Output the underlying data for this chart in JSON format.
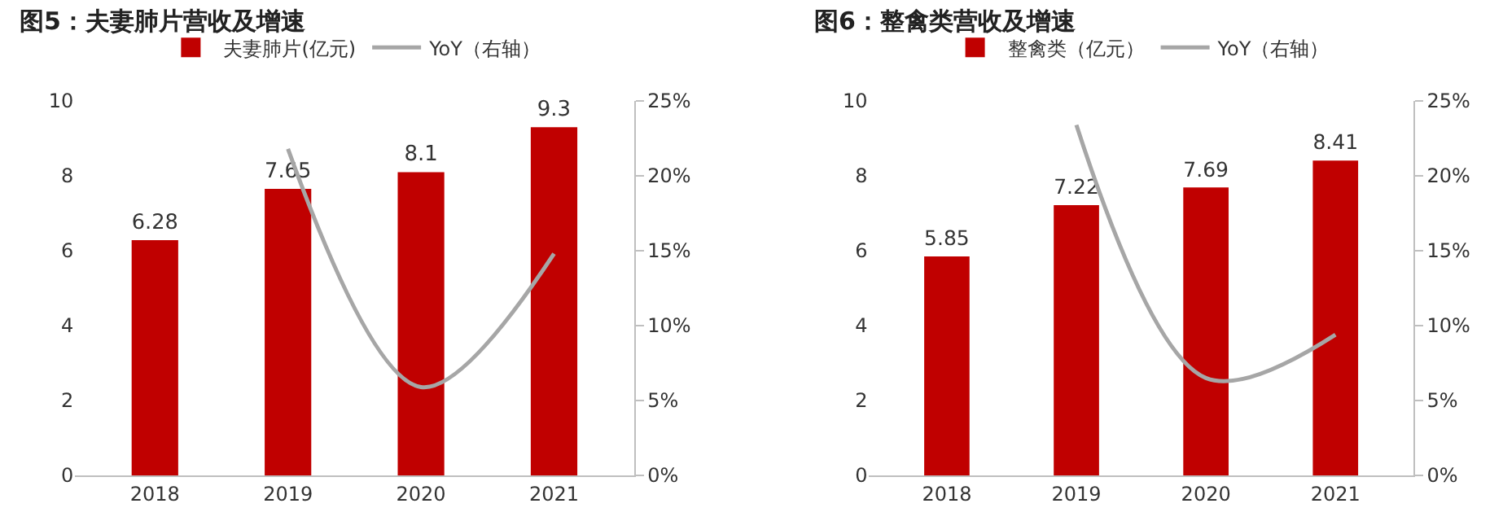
{
  "chart_data": [
    {
      "type": "bar",
      "title": "图5：夫妻肺片营收及增速",
      "categories": [
        "2018",
        "2019",
        "2020",
        "2021"
      ],
      "series": [
        {
          "name": "夫妻肺片(亿元)",
          "color": "#c00000",
          "values": [
            6.28,
            7.65,
            8.1,
            9.3
          ],
          "value_labels": [
            "6.28",
            "7.65",
            "8.1",
            "9.3"
          ]
        },
        {
          "name": "YoY（右轴）",
          "type": "line",
          "axis": "y2",
          "color": "#a6a6a6",
          "values": [
            null,
            21.8,
            5.9,
            14.8
          ]
        }
      ],
      "ylim": [
        0,
        10
      ],
      "yticks": [
        0,
        2,
        4,
        6,
        8,
        10
      ],
      "y2lim": [
        0,
        25
      ],
      "y2ticks": [
        {
          "value": 0,
          "label": "0%"
        },
        {
          "value": 5,
          "label": "5%"
        },
        {
          "value": 10,
          "label": "10%"
        },
        {
          "value": 15,
          "label": "15%"
        },
        {
          "value": 20,
          "label": "20%"
        },
        {
          "value": 25,
          "label": "25%"
        }
      ],
      "legend": "top",
      "grid": false,
      "marker": "none"
    },
    {
      "type": "bar",
      "title": "图6：整禽类营收及增速",
      "categories": [
        "2018",
        "2019",
        "2020",
        "2021"
      ],
      "series": [
        {
          "name": "整禽类（亿元）",
          "color": "#c00000",
          "values": [
            5.85,
            7.22,
            7.69,
            8.41
          ],
          "value_labels": [
            "5.85",
            "7.22",
            "7.69",
            "8.41"
          ]
        },
        {
          "name": "YoY（右轴）",
          "type": "line",
          "axis": "y2",
          "color": "#a6a6a6",
          "values": [
            null,
            23.4,
            6.5,
            9.4
          ]
        }
      ],
      "ylim": [
        0,
        10
      ],
      "yticks": [
        0,
        2,
        4,
        6,
        8,
        10
      ],
      "y2lim": [
        0,
        25
      ],
      "y2ticks": [
        {
          "value": 0,
          "label": "0%"
        },
        {
          "value": 5,
          "label": "5%"
        },
        {
          "value": 10,
          "label": "10%"
        },
        {
          "value": 15,
          "label": "15%"
        },
        {
          "value": 20,
          "label": "20%"
        },
        {
          "value": 25,
          "label": "25%"
        }
      ],
      "legend": "top",
      "grid": false,
      "marker": "none"
    }
  ]
}
